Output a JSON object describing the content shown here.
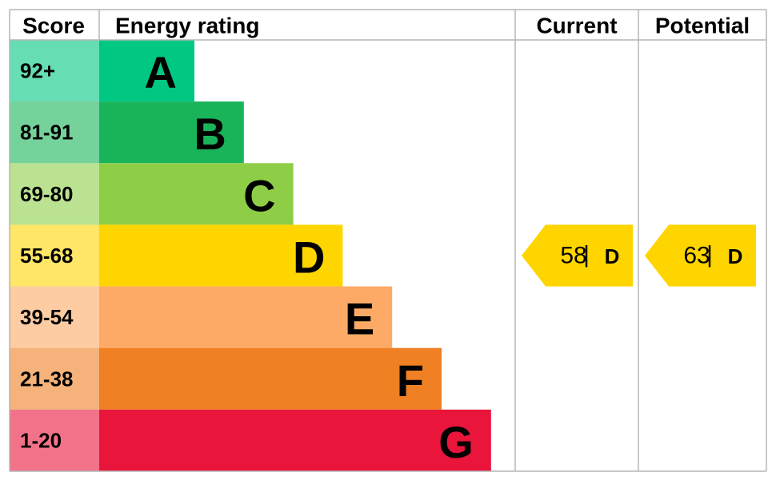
{
  "header": {
    "score": "Score",
    "rating": "Energy rating",
    "current": "Current",
    "potential": "Potential"
  },
  "bands": [
    {
      "score": "92+",
      "letter": "A",
      "color": "#00c781"
    },
    {
      "score": "81-91",
      "letter": "B",
      "color": "#19b459"
    },
    {
      "score": "69-80",
      "letter": "C",
      "color": "#8dce46"
    },
    {
      "score": "55-68",
      "letter": "D",
      "color": "#ffd500"
    },
    {
      "score": "39-54",
      "letter": "E",
      "color": "#fcaa65"
    },
    {
      "score": "21-38",
      "letter": "F",
      "color": "#ef8023"
    },
    {
      "score": "1-20",
      "letter": "G",
      "color": "#e9153b"
    }
  ],
  "current": {
    "value": 58,
    "separator": "|",
    "rating": "D"
  },
  "potential": {
    "value": 63,
    "separator": "|",
    "rating": "D"
  }
}
